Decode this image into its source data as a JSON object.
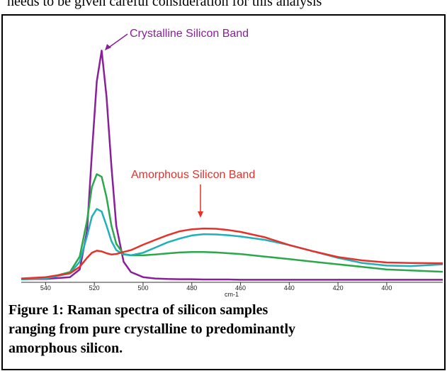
{
  "header_text": "needs to be given careful consideration for this analysis",
  "chart_data": {
    "type": "line",
    "xlabel": "cm-1",
    "x": [
      550,
      540,
      530,
      526,
      523,
      521,
      519,
      517,
      515,
      513,
      511,
      508,
      505,
      500,
      495,
      490,
      485,
      480,
      475,
      470,
      465,
      460,
      450,
      440,
      430,
      420,
      410,
      400,
      390,
      377
    ],
    "series": [
      {
        "color": "#8a1f9a",
        "values": [
          1.2,
          1.3,
          2,
          5,
          20,
          50,
          78,
          90,
          72,
          45,
          22,
          8,
          4,
          2,
          1.5,
          1.3,
          1.2,
          1.2,
          1.1,
          1.1,
          1.1,
          1.0,
          1.0,
          1.0,
          1.0,
          1.0,
          1.0,
          1.0,
          1.0,
          1.0
        ]
      },
      {
        "color": "#2aa84a",
        "values": [
          1.2,
          1.5,
          4,
          10,
          24,
          37,
          42,
          41,
          33,
          22,
          15,
          11,
          10.5,
          10.5,
          10.8,
          11.2,
          11.6,
          11.8,
          11.8,
          11.6,
          11.3,
          11,
          10,
          9,
          8,
          7,
          6,
          5,
          4.6,
          4.1
        ]
      },
      {
        "color": "#1fb0b8",
        "values": [
          1.2,
          1.5,
          3.5,
          8,
          18,
          25.5,
          28.5,
          27.5,
          22,
          16,
          12.5,
          10.8,
          10.5,
          11.5,
          13.5,
          15.5,
          17,
          18.2,
          18.7,
          18.6,
          18.3,
          17.8,
          16.5,
          14.5,
          12,
          9.5,
          7.5,
          6.5,
          6.3,
          7
        ]
      },
      {
        "color": "#e8302a",
        "values": [
          1.5,
          2,
          3.5,
          6,
          9.5,
          11.5,
          12.3,
          12,
          11.3,
          10.8,
          11,
          11.8,
          12.5,
          14.6,
          16.5,
          18.3,
          19.8,
          20.6,
          20.9,
          20.8,
          20.3,
          19.6,
          17.5,
          14.5,
          12,
          9.8,
          8.5,
          7.7,
          7.5,
          7.4
        ]
      }
    ],
    "xlim": [
      550,
      377
    ],
    "xticks": [
      540,
      520,
      500,
      480,
      460,
      440,
      420,
      400
    ],
    "ylim": [
      0,
      100
    ],
    "annotations": [
      {
        "text": "Crystalline Silicon Band",
        "color": "#8a1f9a"
      },
      {
        "text": "Amorphous Silicon Band",
        "color": "#e8302a"
      }
    ]
  },
  "caption": [
    "Figure 1: Raman spectra of silicon samples",
    "ranging from pure crystalline to predominantly",
    "amorphous silicon."
  ]
}
